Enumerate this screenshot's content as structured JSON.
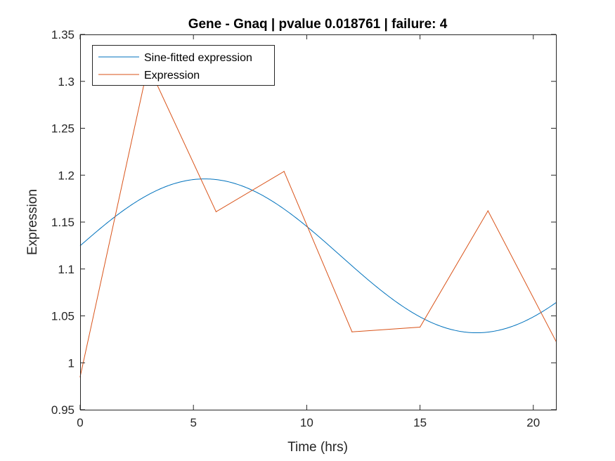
{
  "chart_data": {
    "type": "line",
    "title": "Gene - Gnaq | pvalue 0.018761 | failure: 4",
    "xlabel": "Time (hrs)",
    "ylabel": "Expression",
    "xlim": [
      0,
      21
    ],
    "ylim": [
      0.95,
      1.35
    ],
    "xticks": [
      0,
      5,
      10,
      15,
      20
    ],
    "xtick_labels": [
      "0",
      "5",
      "10",
      "15",
      "20"
    ],
    "yticks": [
      0.95,
      1.0,
      1.05,
      1.1,
      1.15,
      1.2,
      1.25,
      1.3,
      1.35
    ],
    "ytick_labels": [
      "0.95",
      "1",
      "1.05",
      "1.1",
      "1.15",
      "1.2",
      "1.25",
      "1.3",
      "1.35"
    ],
    "grid": false,
    "legend_position": "top-left",
    "series": [
      {
        "name": "Sine-fitted expression",
        "color": "#0072BD",
        "style": "sine",
        "offset": 1.114,
        "amplitude": 0.082,
        "period": 24,
        "peak_time": 5.5
      },
      {
        "name": "Expression",
        "color": "#D95319",
        "style": "points",
        "x": [
          0,
          3,
          6,
          9,
          12,
          15,
          18,
          21
        ],
        "y": [
          0.985,
          1.317,
          1.161,
          1.204,
          1.033,
          1.038,
          1.162,
          1.023
        ]
      }
    ]
  }
}
